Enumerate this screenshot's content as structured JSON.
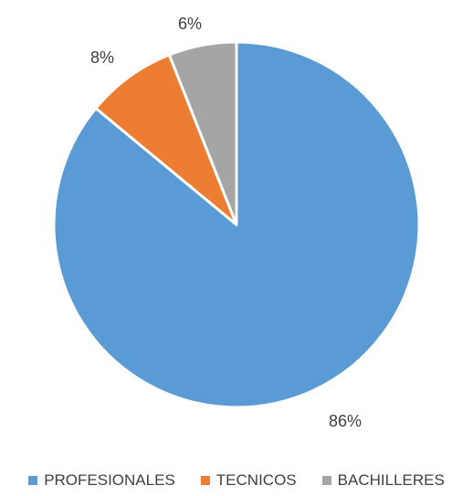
{
  "chart_data": {
    "type": "pie",
    "categories": [
      "PROFESIONALES",
      "TECNICOS",
      "BACHILLERES"
    ],
    "values": [
      86,
      8,
      6
    ],
    "labels": [
      "86%",
      "8%",
      "6%"
    ],
    "colors": [
      "#5B9BD5",
      "#ED7D31",
      "#A5A5A5"
    ],
    "legend_position": "bottom",
    "start_angle_deg": 0,
    "direction": "clockwise"
  },
  "legend": {
    "items": [
      {
        "label": "PROFESIONALES",
        "color": "#5B9BD5"
      },
      {
        "label": "TECNICOS",
        "color": "#ED7D31"
      },
      {
        "label": "BACHILLERES",
        "color": "#A5A5A5"
      }
    ]
  }
}
